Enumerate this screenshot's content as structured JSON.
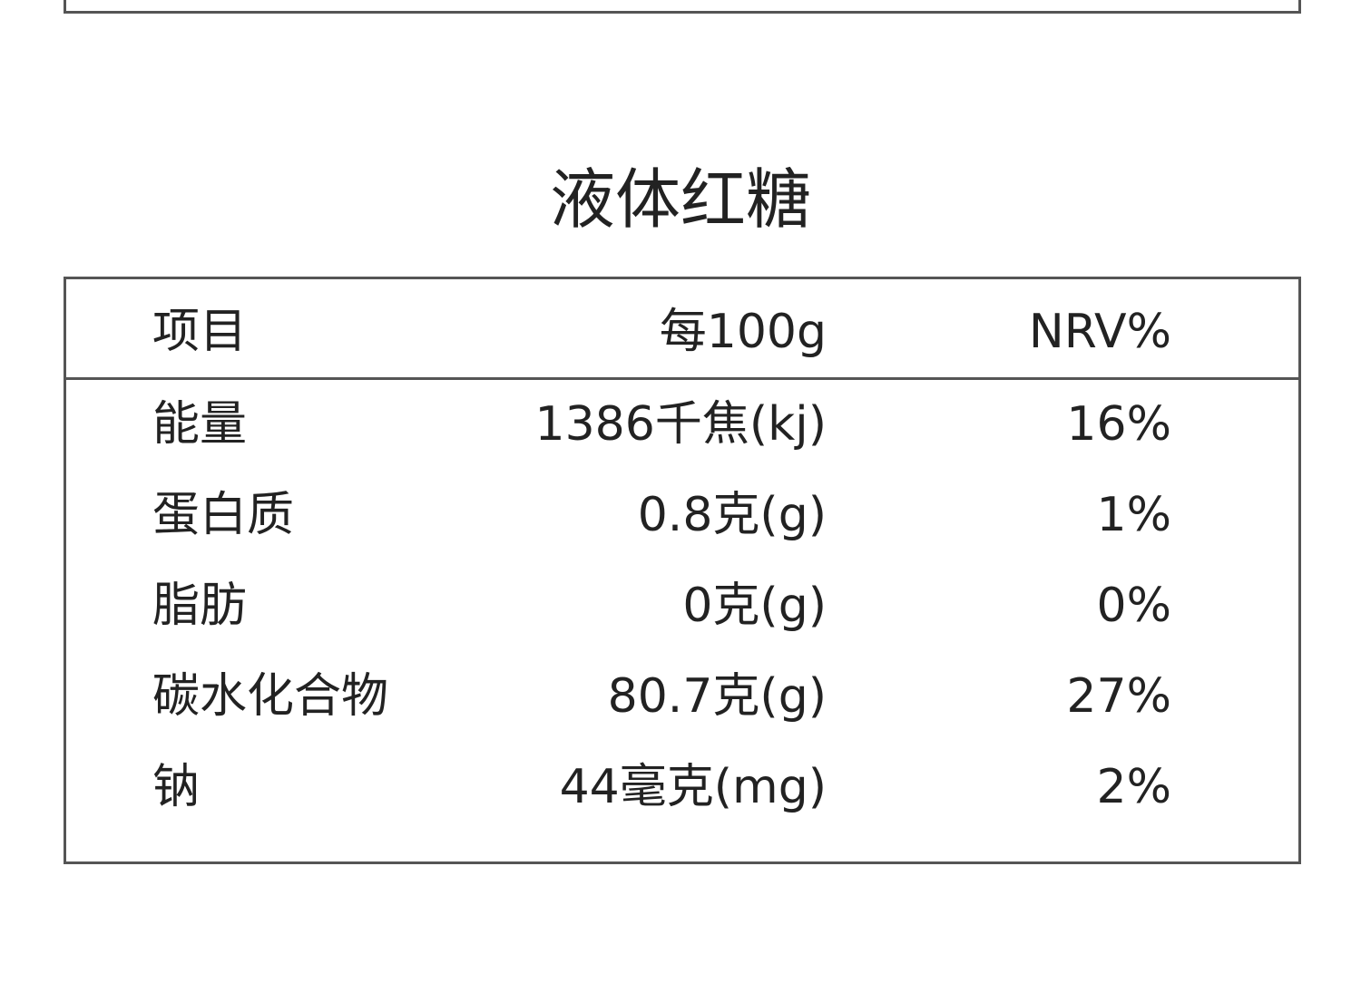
{
  "title": "液体红糖",
  "table": {
    "header": [
      "项目",
      "每100g",
      "NRV%"
    ],
    "rows": [
      [
        "能量",
        "1386千焦(kj)",
        "16%"
      ],
      [
        "蛋白质",
        "0.8克(g)",
        "1%"
      ],
      [
        "脂肪",
        "0克(g)",
        "0%"
      ],
      [
        "碳水化合物",
        "80.7克(g)",
        "27%"
      ],
      [
        "钠",
        "44毫克(mg)",
        "2%"
      ]
    ]
  }
}
